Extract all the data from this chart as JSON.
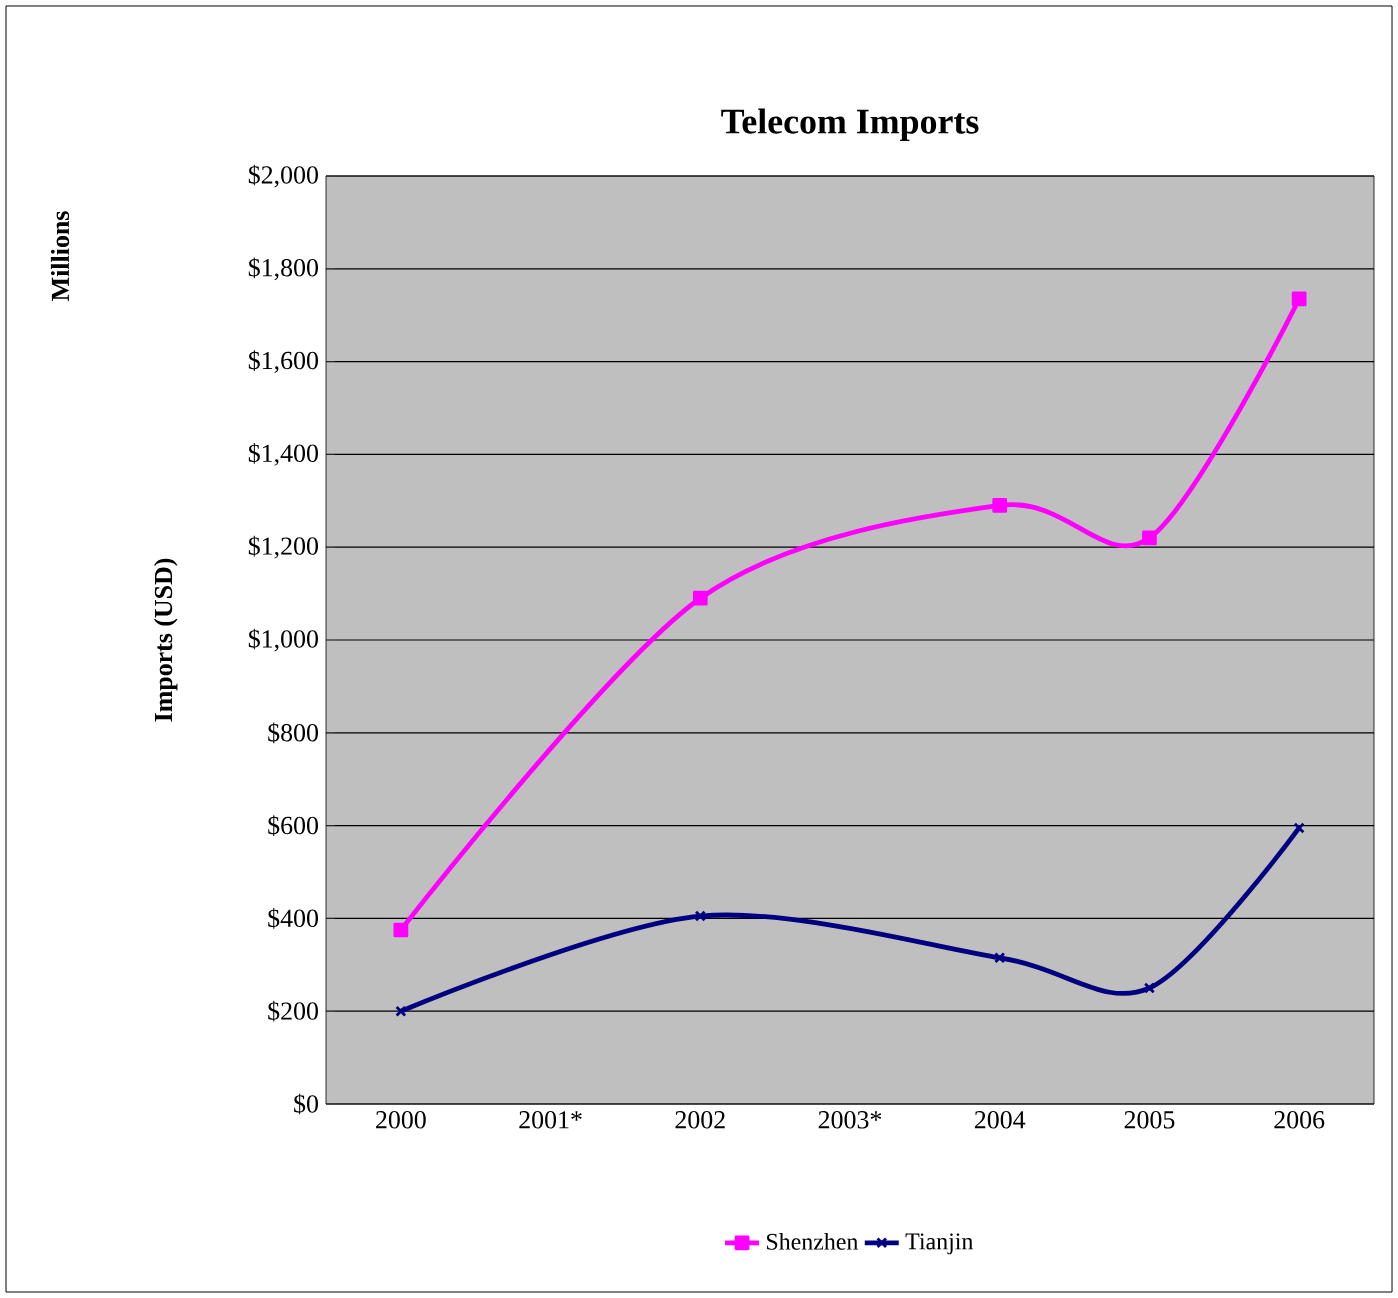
{
  "chart_data": {
    "type": "line",
    "title": "Telecom Imports",
    "ylabel": "Imports (USD)",
    "annotations": [
      "Millions"
    ],
    "categories": [
      "2000",
      "2001*",
      "2002",
      "2003*",
      "2004",
      "2005",
      "2006"
    ],
    "series": [
      {
        "name": "Shenzhen",
        "color": "#ff00ff",
        "marker": "square",
        "values": [
          375,
          null,
          1090,
          null,
          1290,
          1220,
          1735
        ]
      },
      {
        "name": "Tianjin",
        "color": "#000080",
        "marker": "cross",
        "values": [
          200,
          null,
          405,
          null,
          315,
          250,
          595
        ]
      }
    ],
    "ylim": [
      0,
      2000
    ],
    "yticks": [
      {
        "value": 0,
        "label": "$0"
      },
      {
        "value": 200,
        "label": "$200"
      },
      {
        "value": 400,
        "label": "$400"
      },
      {
        "value": 600,
        "label": "$600"
      },
      {
        "value": 800,
        "label": "$800"
      },
      {
        "value": 1000,
        "label": "$1,000"
      },
      {
        "value": 1200,
        "label": "$1,200"
      },
      {
        "value": 1400,
        "label": "$1,400"
      },
      {
        "value": 1600,
        "label": "$1,600"
      },
      {
        "value": 1800,
        "label": "$1,800"
      },
      {
        "value": 2000,
        "label": "$2,000"
      }
    ],
    "grid": "y",
    "legend": "bottom",
    "line_style": "solid"
  }
}
